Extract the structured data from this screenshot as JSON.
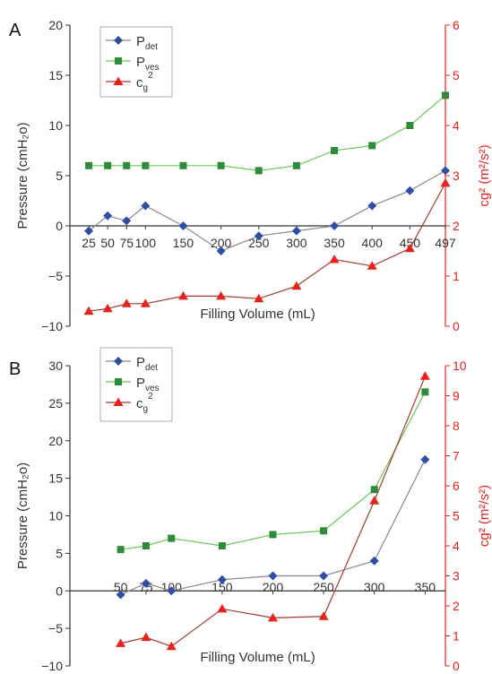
{
  "chart_data": [
    {
      "type": "line",
      "panel_label": "A",
      "x": [
        "25",
        "50",
        "75",
        "100",
        "150",
        "200",
        "250",
        "300",
        "350",
        "400",
        "450",
        "497"
      ],
      "x_values": [
        25,
        50,
        75,
        100,
        150,
        200,
        250,
        300,
        350,
        400,
        450,
        497
      ],
      "xlabel": "Filling Volume (mL)",
      "ylabel": "Pressure (cmH₂o)",
      "ylabel_right": "cg² (m²/s²)",
      "ylim": [
        -10,
        20
      ],
      "yticks": [
        -10,
        -5,
        0,
        5,
        10,
        15,
        20
      ],
      "ylim_right": [
        0,
        6
      ],
      "yticks_right": [
        0,
        1,
        2,
        3,
        4,
        5,
        6
      ],
      "legend_position": "top-left",
      "series": [
        {
          "name": "P",
          "sub": "det",
          "axis": "left",
          "marker": "diamond",
          "color": "#2f4fa5",
          "line_color": "#8a8a8a",
          "values": [
            -0.5,
            1,
            0.5,
            2,
            0,
            -2.5,
            -1,
            -0.5,
            0,
            2,
            3.5,
            5.5
          ]
        },
        {
          "name": "P",
          "sub": "ves",
          "axis": "left",
          "marker": "square",
          "color": "#2e8b3a",
          "line_color": "#66cc55",
          "values": [
            6,
            6,
            6,
            6,
            6,
            6,
            5.5,
            6,
            7.5,
            8,
            10,
            13
          ]
        },
        {
          "name": "c",
          "sub": "g",
          "sup": "2",
          "axis": "right",
          "marker": "triangle",
          "color": "#e8211c",
          "line_color": "#a33b30",
          "values": [
            0.3,
            0.35,
            0.45,
            0.45,
            0.6,
            0.6,
            0.55,
            0.8,
            1.33,
            1.2,
            1.55,
            2.85
          ]
        }
      ]
    },
    {
      "type": "line",
      "panel_label": "B",
      "x": [
        "50",
        "75",
        "100",
        "150",
        "200",
        "250",
        "300",
        "350"
      ],
      "x_values": [
        50,
        75,
        100,
        150,
        200,
        250,
        300,
        350
      ],
      "xlabel": "Filling Volume (mL)",
      "ylabel": "Pressure (cmH₂o)",
      "ylabel_right": "cg² (m²/s²)",
      "ylim": [
        -10,
        30
      ],
      "yticks": [
        -10,
        -5,
        0,
        5,
        10,
        15,
        20,
        25,
        30
      ],
      "ylim_right": [
        0,
        10
      ],
      "yticks_right": [
        0,
        1,
        2,
        3,
        4,
        5,
        6,
        7,
        8,
        9,
        10
      ],
      "legend_position": "top-left",
      "series": [
        {
          "name": "P",
          "sub": "det",
          "axis": "left",
          "marker": "diamond",
          "color": "#2f4fa5",
          "line_color": "#8a8a8a",
          "values": [
            -0.5,
            1,
            0,
            1.5,
            2,
            2,
            4,
            17.5
          ]
        },
        {
          "name": "P",
          "sub": "ves",
          "axis": "left",
          "marker": "square",
          "color": "#2e8b3a",
          "line_color": "#66cc55",
          "values": [
            5.5,
            6,
            7,
            6,
            7.5,
            8,
            13.5,
            26.5
          ]
        },
        {
          "name": "c",
          "sub": "g",
          "sup": "2",
          "axis": "right",
          "marker": "triangle",
          "color": "#e8211c",
          "line_color": "#a33b30",
          "values": [
            0.75,
            0.95,
            0.65,
            1.9,
            1.6,
            1.65,
            5.5,
            9.65
          ]
        }
      ]
    }
  ]
}
